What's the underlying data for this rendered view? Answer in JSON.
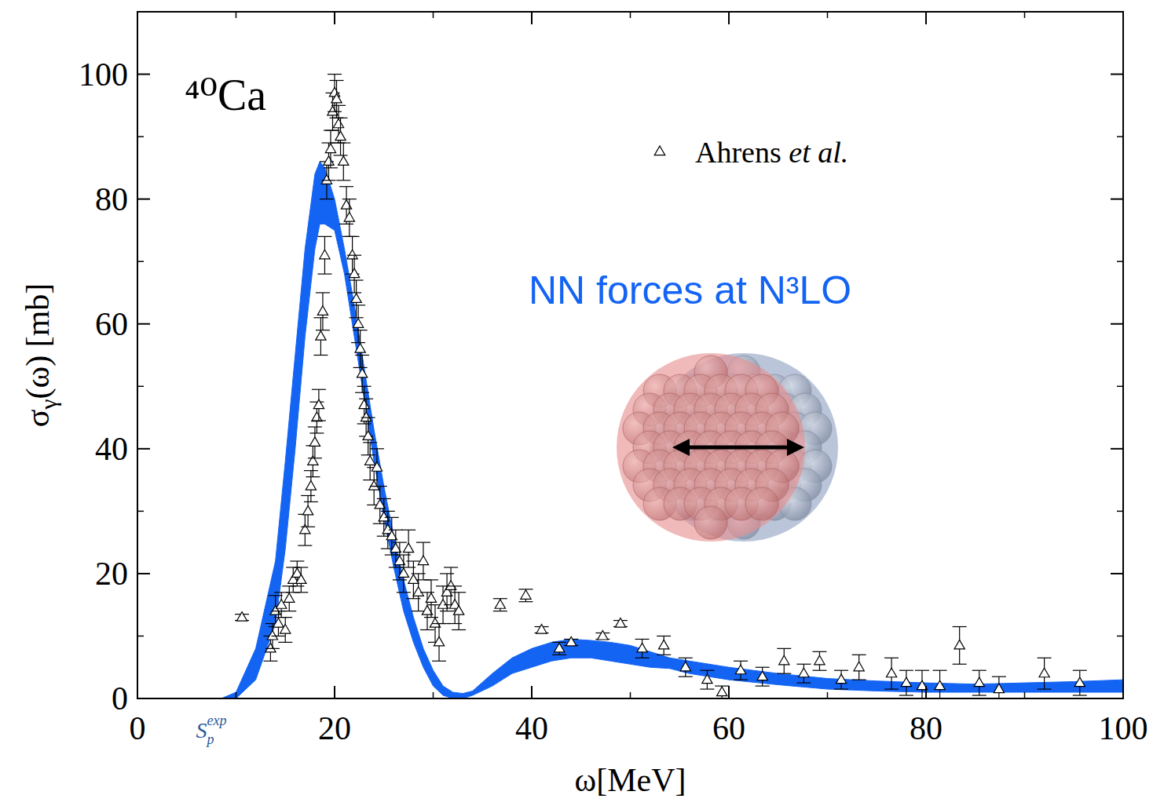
{
  "chart_data": {
    "type": "line",
    "title": "⁴⁰Ca",
    "x_label": "ω[MeV]",
    "y_label": "σγ(ω) [mb]",
    "xlim": [
      0,
      100
    ],
    "ylim": [
      0,
      110
    ],
    "xticks": [
      0,
      20,
      40,
      60,
      80,
      100
    ],
    "yticks": [
      0,
      20,
      40,
      60,
      80,
      100
    ],
    "grid": false,
    "legend": "upper right",
    "threshold": {
      "x": 8.33,
      "symbol": "S",
      "sub": "p",
      "sup": "exp",
      "color": "#2a5a9a"
    },
    "series": [
      {
        "name": "NN forces at N³LO",
        "type": "band",
        "color": "#1464f4",
        "x": [
          8.5,
          10,
          12,
          14,
          15,
          16,
          17,
          18,
          18.5,
          19,
          20,
          21,
          22,
          23,
          24,
          25,
          26,
          27,
          28,
          29,
          30,
          31,
          32,
          33,
          34,
          36,
          38,
          40,
          42,
          44,
          46,
          48,
          50,
          52,
          54,
          56,
          58,
          60,
          65,
          70,
          75,
          80,
          85,
          90,
          95,
          100
        ],
        "values": [
          0,
          1,
          8,
          22,
          38,
          55,
          72,
          84,
          86,
          85,
          80,
          72,
          63,
          53,
          43,
          34,
          26,
          19,
          13,
          8,
          4.5,
          2,
          1,
          0.8,
          1.2,
          4,
          6.5,
          8,
          9,
          9.5,
          9.3,
          9,
          8.5,
          7.5,
          6.5,
          6,
          5.5,
          5,
          4,
          3.2,
          2.8,
          2.5,
          2.3,
          2.5,
          2.7,
          3
        ],
        "lower": [
          0,
          0,
          3,
          12,
          24,
          40,
          58,
          72,
          76,
          76,
          75,
          68,
          58,
          48,
          38,
          29,
          21,
          14,
          9,
          5,
          2,
          0.5,
          0,
          0,
          0.5,
          2,
          4,
          5,
          6,
          6.5,
          6.5,
          6,
          5.5,
          5,
          4.8,
          4,
          3.5,
          3,
          2.2,
          1.5,
          1.2,
          1,
          1,
          1,
          1,
          1
        ]
      },
      {
        "name": "Ahrens et al.",
        "type": "scatter",
        "marker": "triangle",
        "color": "#000000",
        "x": [
          10.6,
          13.5,
          13.7,
          14,
          14.3,
          14.6,
          15,
          15.4,
          15.8,
          16.2,
          16.6,
          17,
          17.3,
          17.6,
          17.8,
          18,
          18.2,
          18.4,
          18.6,
          18.8,
          19,
          19.2,
          19.4,
          19.6,
          19.8,
          20,
          20.2,
          20.4,
          20.6,
          20.9,
          21.2,
          21.5,
          21.8,
          22,
          22.2,
          22.4,
          22.6,
          22.8,
          23,
          23.2,
          23.4,
          23.6,
          24,
          24.3,
          24.6,
          25,
          25.4,
          25.8,
          26.2,
          26.6,
          27,
          27.5,
          28,
          28.5,
          29,
          29.4,
          29.8,
          30.2,
          30.6,
          31,
          31.4,
          31.8,
          32.2,
          32.6,
          36.8,
          39.4,
          41,
          42.8,
          44,
          47.2,
          49,
          51.2,
          53.4,
          55.6,
          57.8,
          59.3,
          61.2,
          63.4,
          65.6,
          67.6,
          69.2,
          71.4,
          73.2,
          76.5,
          78,
          79.6,
          81.4,
          83.4,
          85.4,
          87.4,
          92,
          95.6
        ],
        "values": [
          13,
          8,
          10,
          14,
          12,
          15,
          11,
          16,
          19,
          20,
          19,
          27,
          30,
          34,
          38,
          41,
          45,
          47,
          58,
          62,
          71,
          83,
          86,
          88,
          94,
          97,
          96,
          92,
          90,
          86,
          79,
          77,
          71,
          68,
          64,
          60,
          56,
          52,
          47,
          45,
          42,
          38,
          34,
          37,
          31,
          29,
          27,
          26,
          24,
          22,
          20,
          24,
          19,
          17,
          22,
          14,
          16,
          12,
          9,
          15,
          17,
          18,
          15,
          14,
          15,
          16.5,
          11,
          8,
          9,
          10,
          12,
          8,
          8.5,
          5,
          3,
          1,
          4.5,
          3.5,
          6,
          4,
          6,
          3,
          5,
          4,
          2.5,
          2,
          2,
          8.5,
          2.5,
          1.5,
          4,
          2.5
        ],
        "errors": [
          0.5,
          2,
          2,
          2.5,
          2,
          2,
          2,
          2,
          2,
          2,
          2,
          2.5,
          2.5,
          2.5,
          2.5,
          2.5,
          2.5,
          2.5,
          3,
          3,
          3,
          3,
          3,
          3,
          3,
          3,
          3,
          3,
          3,
          3,
          3,
          3,
          3,
          3,
          3,
          3,
          3,
          3,
          3,
          3,
          3,
          3,
          3,
          3,
          3,
          3,
          3,
          3,
          3,
          3,
          3,
          3,
          3,
          3,
          3,
          3,
          3,
          3,
          3,
          3,
          3,
          3,
          3,
          3,
          1,
          1,
          0.5,
          1,
          0.5,
          0.5,
          0.5,
          1.5,
          1.5,
          1.5,
          1.5,
          1,
          1.5,
          1.5,
          2,
          1.5,
          1.5,
          1.5,
          2,
          2.5,
          2,
          2.5,
          2.5,
          3,
          2,
          2,
          2.5,
          2
        ]
      }
    ]
  }
}
